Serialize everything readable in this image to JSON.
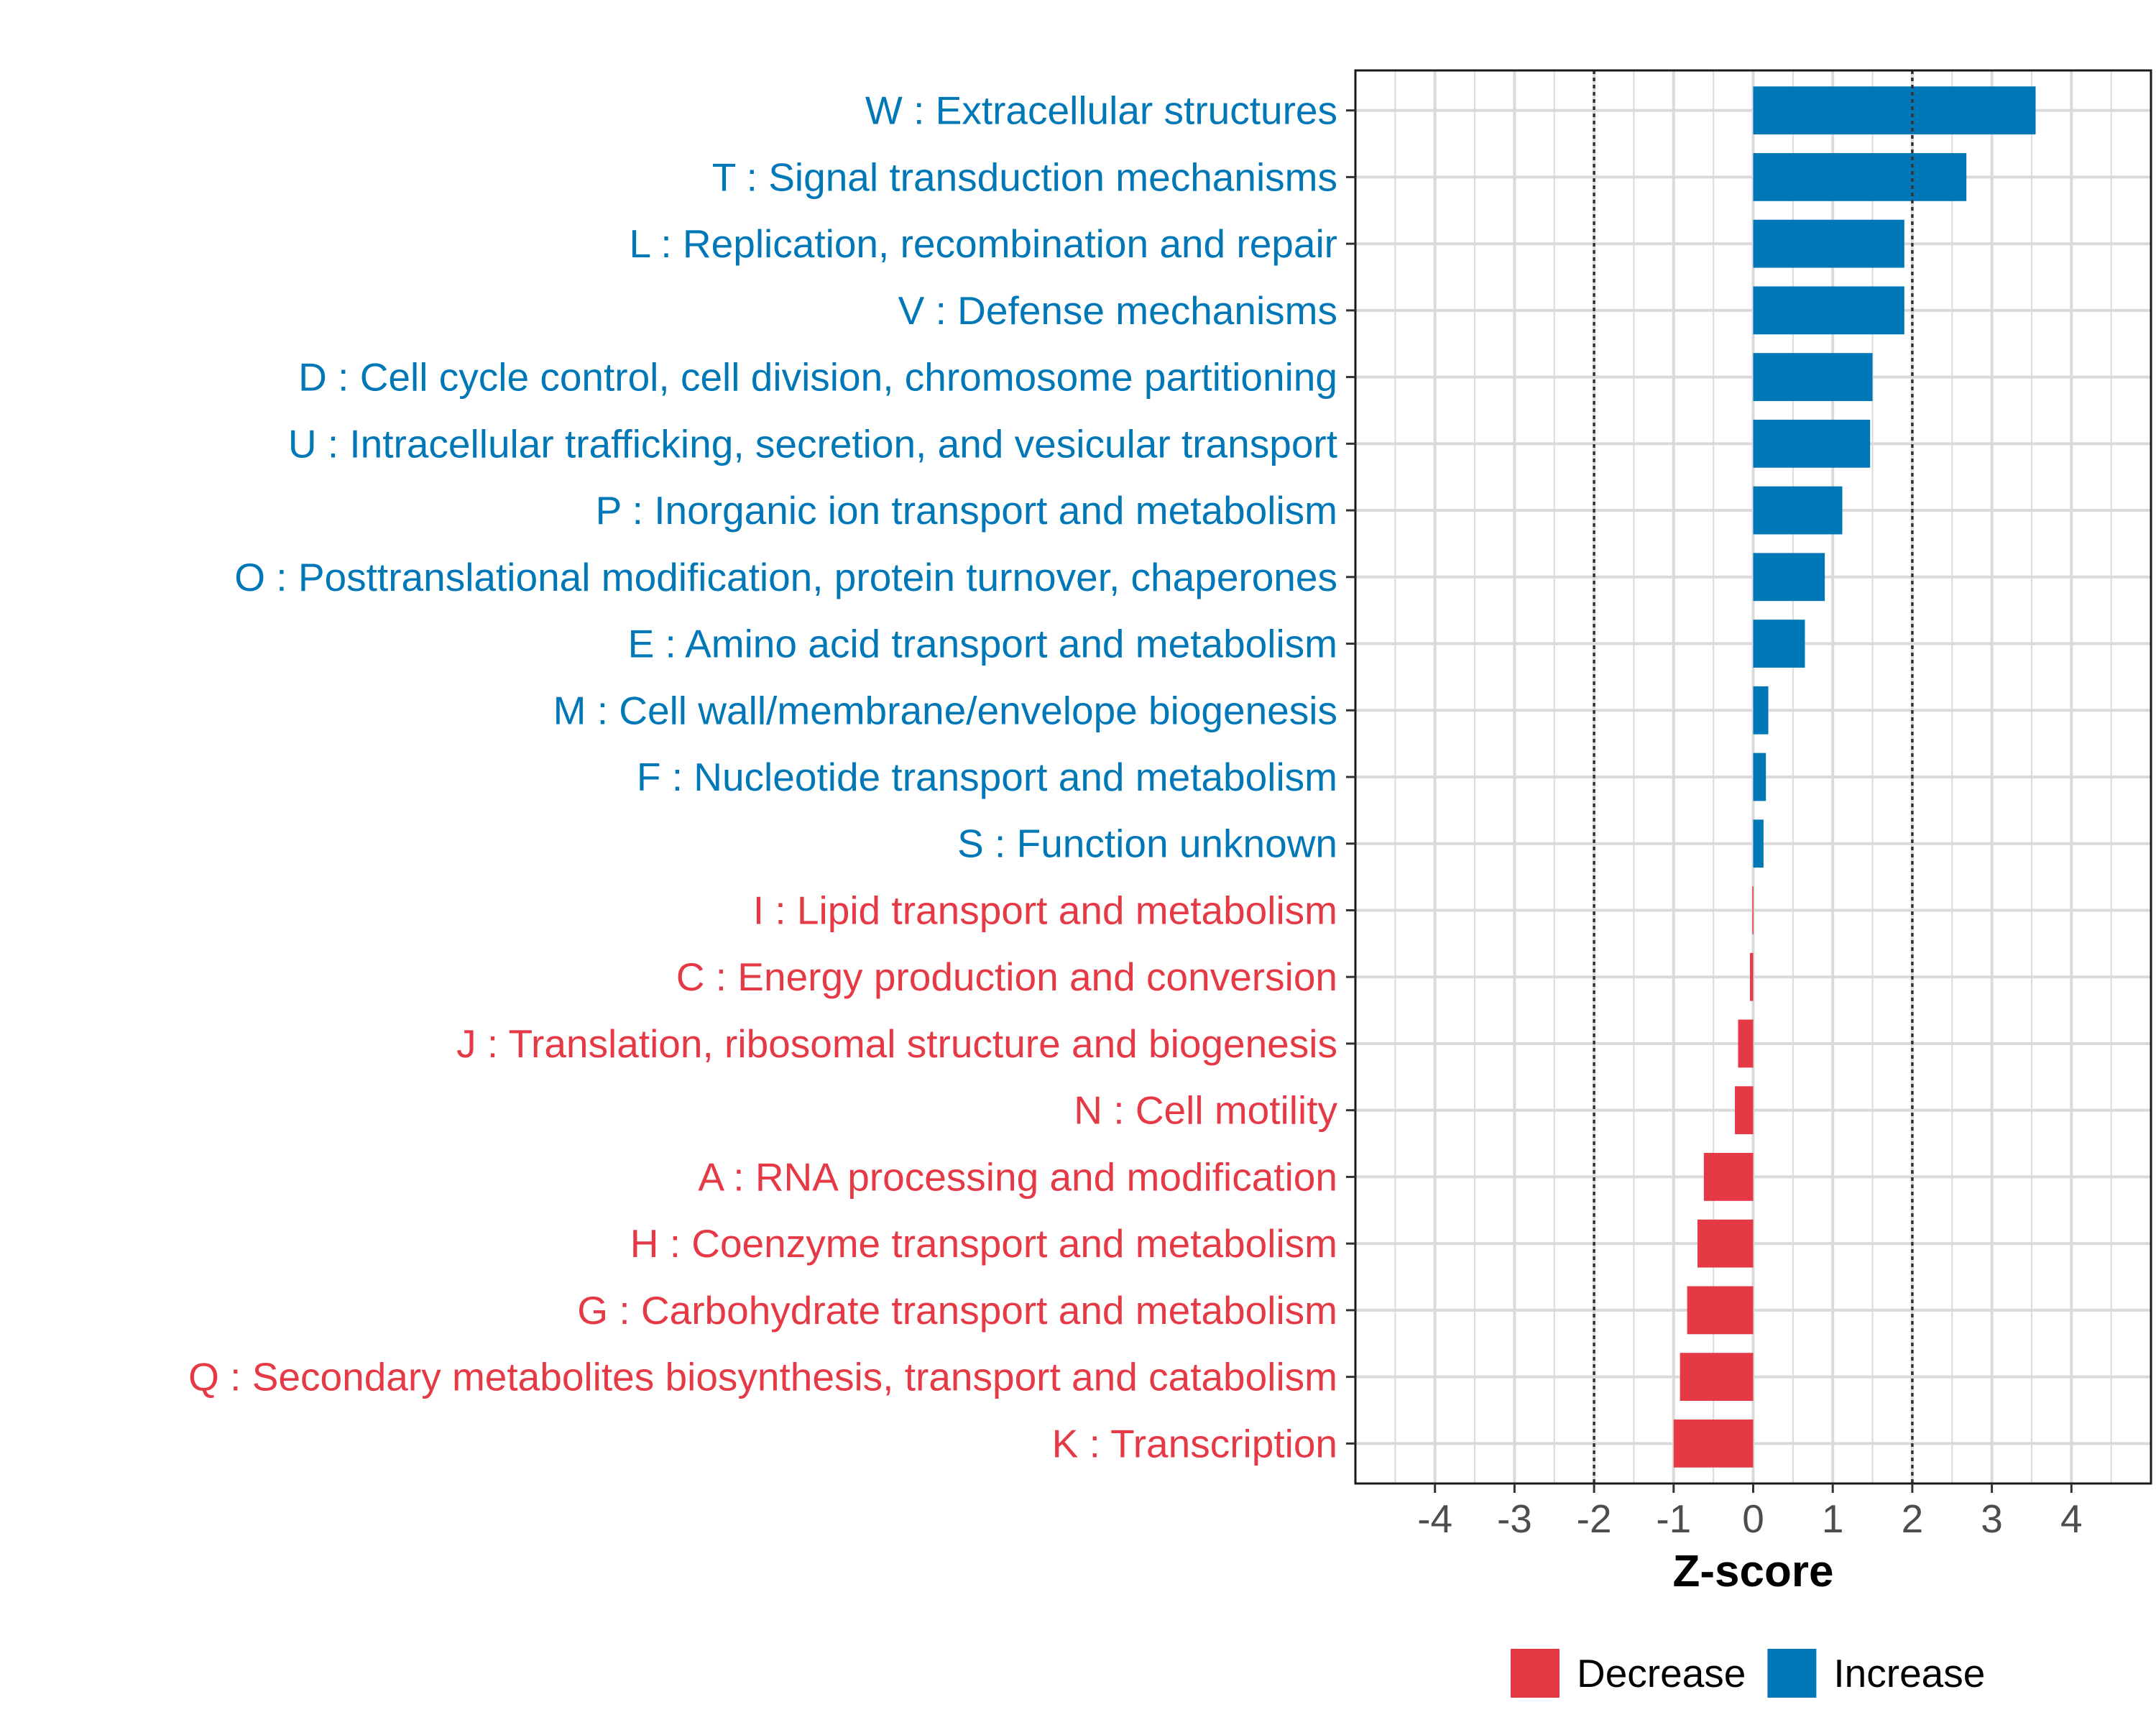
{
  "chart_data": {
    "type": "bar",
    "orientation": "horizontal",
    "title": "",
    "xlabel": "Z-score",
    "ylabel": "",
    "xlim": [
      -5,
      5
    ],
    "x_ticks": [
      -4,
      -3,
      -2,
      -1,
      0,
      1,
      2,
      3,
      4
    ],
    "x_tick_labels": [
      "-4",
      "-3",
      "-2",
      "-1",
      "0",
      "1",
      "2",
      "3",
      "4"
    ],
    "reference_lines": [
      -2,
      2
    ],
    "grid": true,
    "colors": {
      "Decrease": "#E63946",
      "Increase": "#0077B6",
      "grid": "#DADADA",
      "axis_text": "#4D4D4D"
    },
    "legend": {
      "position": "bottom",
      "entries": [
        {
          "label": "Decrease",
          "color": "#E63946"
        },
        {
          "label": "Increase",
          "color": "#0077B6"
        }
      ]
    },
    "categories": [
      {
        "label": "W : Extracellular structures",
        "value": 3.55,
        "group": "Increase"
      },
      {
        "label": "T : Signal transduction mechanisms",
        "value": 2.68,
        "group": "Increase"
      },
      {
        "label": "L : Replication, recombination and repair",
        "value": 1.9,
        "group": "Increase"
      },
      {
        "label": "V : Defense mechanisms",
        "value": 1.9,
        "group": "Increase"
      },
      {
        "label": "D : Cell cycle control, cell division, chromosome partitioning",
        "value": 1.5,
        "group": "Increase"
      },
      {
        "label": "U : Intracellular trafficking, secretion, and vesicular transport",
        "value": 1.47,
        "group": "Increase"
      },
      {
        "label": "P : Inorganic ion transport and metabolism",
        "value": 1.12,
        "group": "Increase"
      },
      {
        "label": "O : Posttranslational modification, protein turnover, chaperones",
        "value": 0.9,
        "group": "Increase"
      },
      {
        "label": "E : Amino acid transport and metabolism",
        "value": 0.65,
        "group": "Increase"
      },
      {
        "label": "M : Cell wall/membrane/envelope biogenesis",
        "value": 0.19,
        "group": "Increase"
      },
      {
        "label": "F : Nucleotide transport and metabolism",
        "value": 0.16,
        "group": "Increase"
      },
      {
        "label": "S : Function unknown",
        "value": 0.13,
        "group": "Increase"
      },
      {
        "label": "I : Lipid transport and metabolism",
        "value": -0.01,
        "group": "Decrease"
      },
      {
        "label": "C : Energy production and conversion",
        "value": -0.04,
        "group": "Decrease"
      },
      {
        "label": "J : Translation, ribosomal structure and biogenesis",
        "value": -0.19,
        "group": "Decrease"
      },
      {
        "label": "N : Cell motility",
        "value": -0.23,
        "group": "Decrease"
      },
      {
        "label": "A : RNA processing and modification",
        "value": -0.62,
        "group": "Decrease"
      },
      {
        "label": "H : Coenzyme transport and metabolism",
        "value": -0.7,
        "group": "Decrease"
      },
      {
        "label": "G : Carbohydrate transport and metabolism",
        "value": -0.83,
        "group": "Decrease"
      },
      {
        "label": "Q : Secondary metabolites biosynthesis, transport and catabolism",
        "value": -0.92,
        "group": "Decrease"
      },
      {
        "label": "K : Transcription",
        "value": -1.0,
        "group": "Decrease"
      }
    ]
  }
}
